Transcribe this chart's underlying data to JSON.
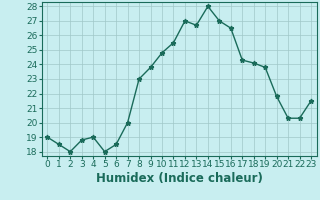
{
  "x": [
    0,
    1,
    2,
    3,
    4,
    5,
    6,
    7,
    8,
    9,
    10,
    11,
    12,
    13,
    14,
    15,
    16,
    17,
    18,
    19,
    20,
    21,
    22,
    23
  ],
  "y": [
    19,
    18.5,
    18,
    18.8,
    19,
    18,
    18.5,
    20,
    23,
    23.8,
    24.8,
    25.5,
    27,
    26.7,
    28,
    27,
    26.5,
    24.3,
    24.1,
    23.8,
    21.8,
    20.3,
    20.3,
    21.5
  ],
  "xlabel": "Humidex (Indice chaleur)",
  "ylabel": "",
  "ylim": [
    17.7,
    28.3
  ],
  "xlim": [
    -0.5,
    23.5
  ],
  "yticks": [
    18,
    19,
    20,
    21,
    22,
    23,
    24,
    25,
    26,
    27,
    28
  ],
  "xticks": [
    0,
    1,
    2,
    3,
    4,
    5,
    6,
    7,
    8,
    9,
    10,
    11,
    12,
    13,
    14,
    15,
    16,
    17,
    18,
    19,
    20,
    21,
    22,
    23
  ],
  "line_color": "#1a6b5a",
  "marker": "*",
  "bg_color": "#c8eef0",
  "grid_color": "#a0c8c8",
  "tick_label_fontsize": 6.5,
  "xlabel_fontsize": 8.5
}
